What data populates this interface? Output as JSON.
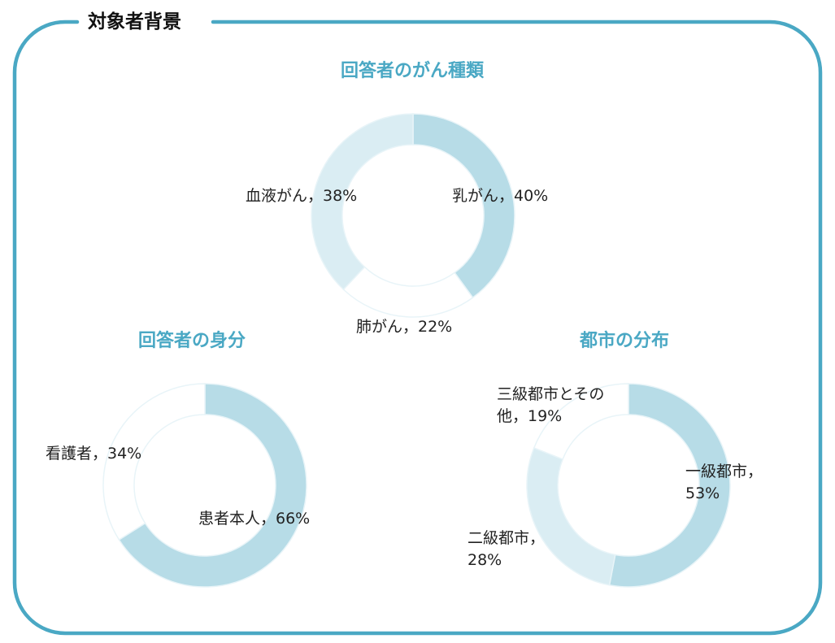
{
  "frame": {
    "title": "対象者背景",
    "border_color": "#4aa8c4"
  },
  "chart_data": [
    {
      "type": "pie",
      "title": "回答者のがん種類",
      "slices": [
        {
          "label": "乳がん",
          "value": 40,
          "color": "#b7dce7",
          "label_text": [
            "乳がん，40%"
          ]
        },
        {
          "label": "肺がん",
          "value": 22,
          "color": "#ffffff",
          "label_text": [
            "肺がん，22%"
          ]
        },
        {
          "label": "血液がん",
          "value": 38,
          "color": "#daedf3",
          "label_text": [
            "血液がん，38%"
          ]
        }
      ]
    },
    {
      "type": "pie",
      "title": "回答者の身分",
      "slices": [
        {
          "label": "患者本人",
          "value": 66,
          "color": "#b7dce7",
          "label_text": [
            "患者本人，66%"
          ]
        },
        {
          "label": "看護者",
          "value": 34,
          "color": "#ffffff",
          "label_text": [
            "看護者，34%"
          ]
        }
      ]
    },
    {
      "type": "pie",
      "title": "都市の分布",
      "slices": [
        {
          "label": "一級都市",
          "value": 53,
          "color": "#b7dce7",
          "label_text": [
            "一級都市，",
            "53%"
          ]
        },
        {
          "label": "二級都市",
          "value": 28,
          "color": "#daedf3",
          "label_text": [
            "二級都市，",
            "28%"
          ]
        },
        {
          "label": "三級都市とその他",
          "value": 19,
          "color": "#ffffff",
          "label_text": [
            "三級都市とその",
            "他，19%"
          ]
        }
      ]
    }
  ]
}
